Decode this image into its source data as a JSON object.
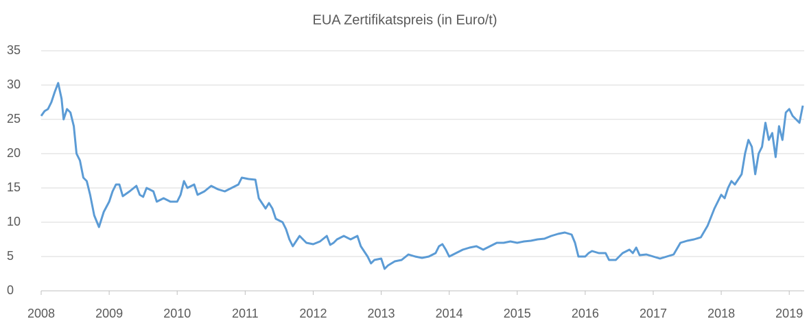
{
  "chart_data": {
    "type": "line",
    "title": "EUA Zertifikatspreis (in Euro/t)",
    "x": [
      2008.0,
      2008.05,
      2008.1,
      2008.15,
      2008.2,
      2008.25,
      2008.3,
      2008.33,
      2008.38,
      2008.43,
      2008.48,
      2008.52,
      2008.57,
      2008.62,
      2008.67,
      2008.72,
      2008.78,
      2008.85,
      2008.92,
      2009.0,
      2009.05,
      2009.1,
      2009.15,
      2009.2,
      2009.3,
      2009.4,
      2009.45,
      2009.5,
      2009.55,
      2009.65,
      2009.7,
      2009.8,
      2009.9,
      2010.0,
      2010.05,
      2010.1,
      2010.15,
      2010.25,
      2010.3,
      2010.4,
      2010.5,
      2010.6,
      2010.7,
      2010.8,
      2010.9,
      2010.95,
      2011.05,
      2011.15,
      2011.2,
      2011.3,
      2011.35,
      2011.4,
      2011.45,
      2011.55,
      2011.6,
      2011.65,
      2011.7,
      2011.8,
      2011.9,
      2012.0,
      2012.1,
      2012.2,
      2012.25,
      2012.3,
      2012.35,
      2012.45,
      2012.55,
      2012.65,
      2012.7,
      2012.8,
      2012.85,
      2012.9,
      2013.0,
      2013.05,
      2013.1,
      2013.2,
      2013.3,
      2013.4,
      2013.5,
      2013.6,
      2013.7,
      2013.8,
      2013.85,
      2013.9,
      2013.95,
      2014.0,
      2014.1,
      2014.2,
      2014.3,
      2014.4,
      2014.5,
      2014.6,
      2014.7,
      2014.8,
      2014.9,
      2015.0,
      2015.1,
      2015.2,
      2015.3,
      2015.4,
      2015.5,
      2015.6,
      2015.7,
      2015.8,
      2015.85,
      2015.9,
      2016.0,
      2016.05,
      2016.1,
      2016.2,
      2016.3,
      2016.35,
      2016.45,
      2016.55,
      2016.65,
      2016.7,
      2016.75,
      2016.8,
      2016.9,
      2017.0,
      2017.1,
      2017.2,
      2017.3,
      2017.4,
      2017.5,
      2017.6,
      2017.7,
      2017.8,
      2017.9,
      2018.0,
      2018.05,
      2018.1,
      2018.15,
      2018.2,
      2018.3,
      2018.35,
      2018.4,
      2018.45,
      2018.5,
      2018.55,
      2018.6,
      2018.65,
      2018.7,
      2018.75,
      2018.8,
      2018.85,
      2018.9,
      2018.95,
      2019.0,
      2019.05,
      2019.1,
      2019.15,
      2019.2
    ],
    "series": [
      {
        "color": "#5b9bd5",
        "values": [
          25.5,
          26.2,
          26.5,
          27.5,
          29,
          30.3,
          28,
          25,
          26.5,
          26,
          24,
          20,
          19,
          16.5,
          16,
          14,
          11,
          9.3,
          11.5,
          13,
          14.5,
          15.5,
          15.5,
          13.8,
          14.5,
          15.3,
          14,
          13.7,
          15,
          14.5,
          13,
          13.5,
          13,
          13,
          14,
          16,
          15,
          15.5,
          14,
          14.5,
          15.3,
          14.8,
          14.5,
          15,
          15.5,
          16.5,
          16.3,
          16.2,
          13.5,
          12,
          12.8,
          12,
          10.5,
          10,
          9,
          7.5,
          6.5,
          8,
          7,
          6.8,
          7.2,
          8,
          6.7,
          7,
          7.5,
          8,
          7.5,
          8,
          6.5,
          5,
          4,
          4.5,
          4.7,
          3.2,
          3.7,
          4.3,
          4.5,
          5.3,
          5,
          4.8,
          5,
          5.5,
          6.5,
          6.8,
          6,
          5,
          5.5,
          6,
          6.3,
          6.5,
          6,
          6.5,
          7,
          7,
          7.2,
          7,
          7.2,
          7.3,
          7.5,
          7.6,
          8,
          8.3,
          8.5,
          8.2,
          7,
          5,
          5,
          5.5,
          5.8,
          5.5,
          5.5,
          4.5,
          4.5,
          5.5,
          6,
          5.5,
          6.3,
          5.2,
          5.3,
          5,
          4.7,
          5,
          5.3,
          7,
          7.3,
          7.5,
          7.8,
          9.5,
          12,
          14,
          13.5,
          15,
          16,
          15.5,
          17,
          20,
          22,
          21,
          17,
          20,
          21,
          24.5,
          22,
          23,
          19.5,
          24,
          22,
          26,
          26.5,
          25.5,
          25,
          24.5,
          27
        ]
      }
    ],
    "xlim": [
      2008,
      2019.22
    ],
    "xticks": [
      2008,
      2009,
      2010,
      2011,
      2012,
      2013,
      2014,
      2015,
      2016,
      2017,
      2018,
      2019
    ],
    "ylim": [
      0,
      35
    ],
    "yticks": [
      0,
      5,
      10,
      15,
      20,
      25,
      30,
      35
    ],
    "grid": true
  }
}
